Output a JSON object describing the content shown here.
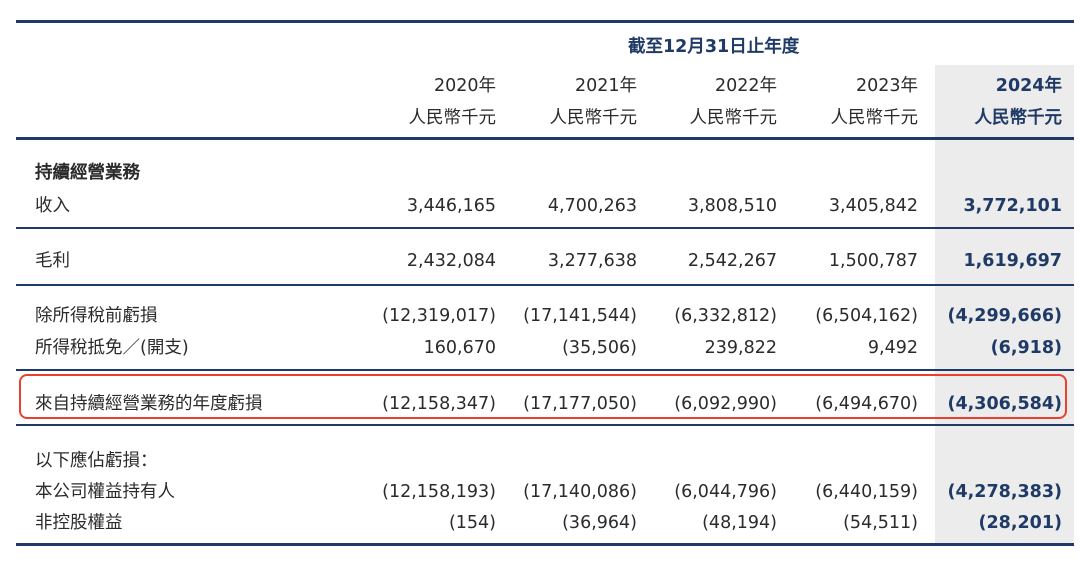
{
  "header": {
    "period_label": "截至12月31日止年度",
    "years": [
      "2020年",
      "2021年",
      "2022年",
      "2023年",
      "2024年"
    ],
    "unit": "人民幣千元"
  },
  "rows": {
    "section_continuing": "持續經營業務",
    "revenue": {
      "label": "收入",
      "values": [
        "3,446,165",
        "4,700,263",
        "3,808,510",
        "3,405,842",
        "3,772,101"
      ]
    },
    "gross_profit": {
      "label": "毛利",
      "values": [
        "2,432,084",
        "3,277,638",
        "2,542,267",
        "1,500,787",
        "1,619,697"
      ]
    },
    "loss_before_tax": {
      "label": "除所得稅前虧損",
      "values": [
        "(12,319,017)",
        "(17,141,544)",
        "(6,332,812)",
        "(6,504,162)",
        "(4,299,666)"
      ]
    },
    "income_tax": {
      "label": "所得稅抵免／(開支)",
      "values": [
        "160,670",
        "(35,506)",
        "239,822",
        "9,492",
        "(6,918)"
      ]
    },
    "annual_loss": {
      "label": "來自持續經營業務的年度虧損",
      "values": [
        "(12,158,347)",
        "(17,177,050)",
        "(6,092,990)",
        "(6,494,670)",
        "(4,306,584)"
      ]
    },
    "attributable_heading": "以下應佔虧損：",
    "equity_holders": {
      "label": "本公司權益持有人",
      "values": [
        "(12,158,193)",
        "(17,140,086)",
        "(6,044,796)",
        "(6,440,159)",
        "(4,278,383)"
      ]
    },
    "non_controlling": {
      "label": "非控股權益",
      "values": [
        "(154)",
        "(36,964)",
        "(48,194)",
        "(54,511)",
        "(28,201)"
      ]
    }
  },
  "colors": {
    "rule": "#1f3a66",
    "highlight_column": "#ececec",
    "callout_box": "#e8412f",
    "accent_text": "#1f3a66"
  }
}
